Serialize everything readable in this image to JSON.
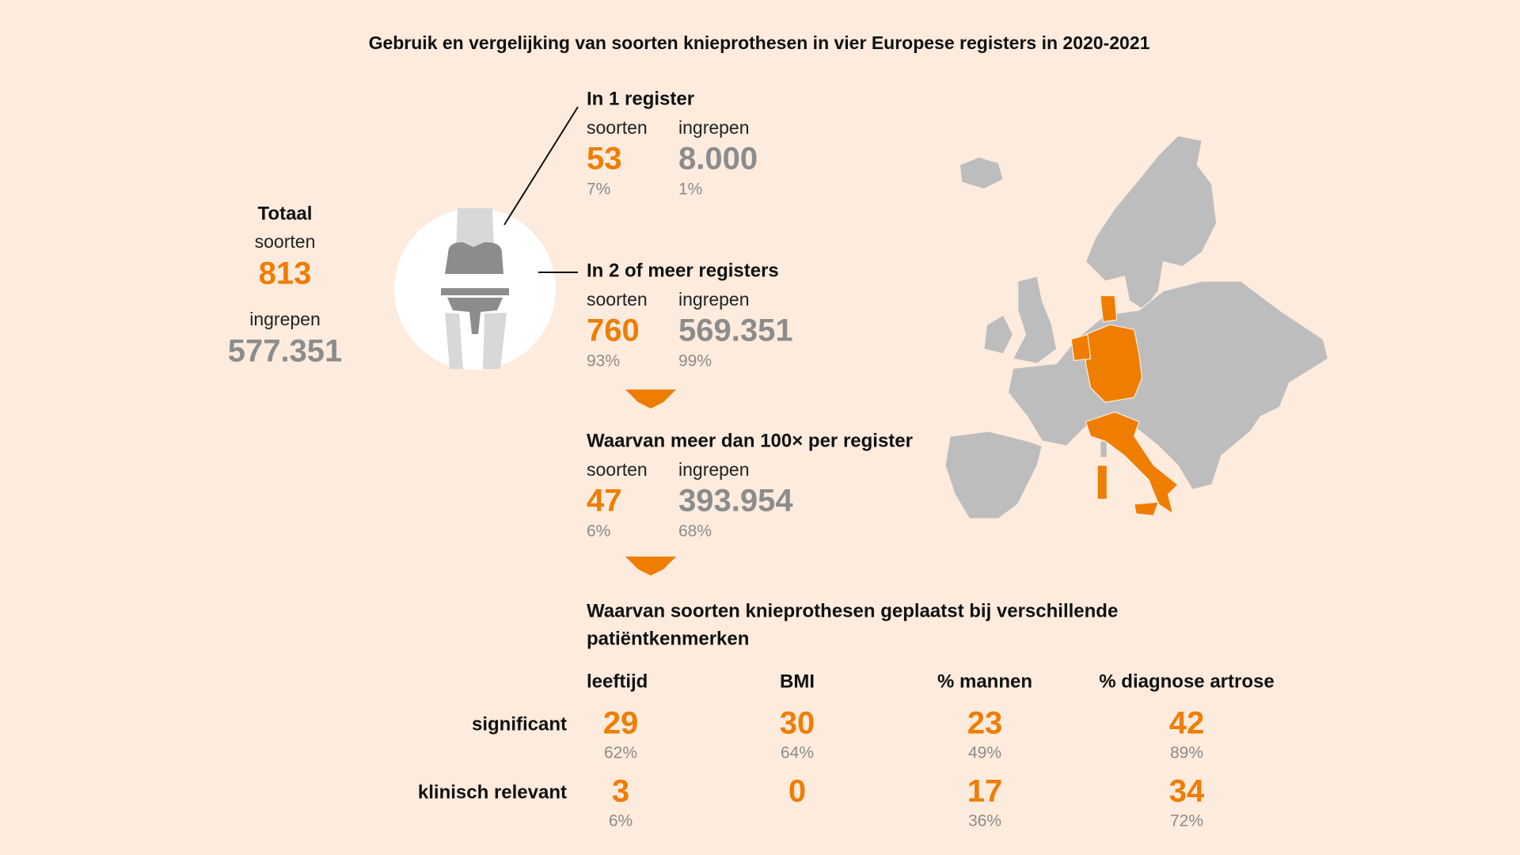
{
  "title": "Gebruik en vergelijking van soorten knieprothesen in vier Europese registers in 2020-2021",
  "total": {
    "heading": "Totaal",
    "types_label": "soorten",
    "types": "813",
    "procedures_label": "ingrepen",
    "procedures": "577.351"
  },
  "sections": [
    {
      "heading": "In 1 register",
      "types_label": "soorten",
      "types": "53",
      "types_pct": "7%",
      "procedures_label": "ingrepen",
      "procedures": "8.000",
      "procedures_pct": "1%"
    },
    {
      "heading": "In 2 of meer registers",
      "types_label": "soorten",
      "types": "760",
      "types_pct": "93%",
      "procedures_label": "ingrepen",
      "procedures": "569.351",
      "procedures_pct": "99%"
    },
    {
      "heading": "Waarvan meer dan 100× per register",
      "types_label": "soorten",
      "types": "47",
      "types_pct": "6%",
      "procedures_label": "ingrepen",
      "procedures": "393.954",
      "procedures_pct": "68%"
    }
  ],
  "characteristics": {
    "heading_lines": [
      "Waarvan soorten knieprothesen geplaatst bij verschillende",
      "patiëntkenmerken"
    ],
    "columns": [
      "leeftijd",
      "BMI",
      "% mannen",
      "% diagnose artrose"
    ],
    "rows": [
      {
        "label": "significant",
        "cells": [
          {
            "value": "29",
            "pct": "62%"
          },
          {
            "value": "30",
            "pct": "64%"
          },
          {
            "value": "23",
            "pct": "49%"
          },
          {
            "value": "42",
            "pct": "89%"
          }
        ]
      },
      {
        "label": "klinisch relevant",
        "cells": [
          {
            "value": "3",
            "pct": "6%"
          },
          {
            "value": "0"
          },
          {
            "value": "17",
            "pct": "36%"
          },
          {
            "value": "34",
            "pct": "72%"
          }
        ]
      }
    ]
  }
}
